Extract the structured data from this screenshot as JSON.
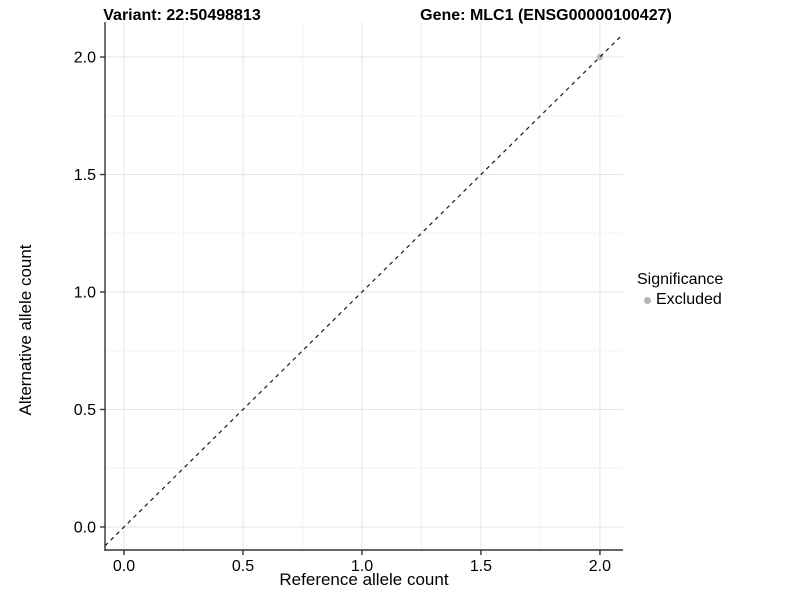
{
  "chart_data": {
    "type": "scatter",
    "titles": {
      "variant": "Variant: 22:50498813",
      "gene": "Gene: MLC1 (ENSG00000100427)"
    },
    "xlabel": "Reference allele count",
    "ylabel": "Alternative allele count",
    "xlim": [
      -0.08,
      2.097
    ],
    "ylim": [
      -0.098,
      2.149
    ],
    "xticks": [
      0.0,
      0.5,
      1.0,
      1.5,
      2.0
    ],
    "yticks": [
      0.0,
      0.5,
      1.0,
      1.5,
      2.0
    ],
    "xtick_labels": [
      "0.0",
      "0.5",
      "1.0",
      "1.5",
      "2.0"
    ],
    "ytick_labels": [
      "0.0",
      "0.5",
      "1.0",
      "1.5",
      "2.0"
    ],
    "grid": {
      "major": true,
      "minor": true
    },
    "reference_line": {
      "kind": "abline",
      "slope": 1,
      "intercept": 0,
      "style": "dashed"
    },
    "series": [
      {
        "name": "Excluded",
        "color": "#bcbcbc",
        "points": [
          {
            "x": 2.0,
            "y": 2.0
          }
        ]
      }
    ],
    "legend": {
      "title": "Significance",
      "position": "right",
      "entries": [
        {
          "label": "Excluded",
          "color": "#b3b3b3"
        }
      ]
    },
    "colors": {
      "grid_major": "#e6e6e6",
      "grid_minor": "#f2f2f2",
      "axis_line": "#333333",
      "tick": "#333333",
      "reference_line": "#1a1a1a",
      "text": "#000000"
    }
  }
}
